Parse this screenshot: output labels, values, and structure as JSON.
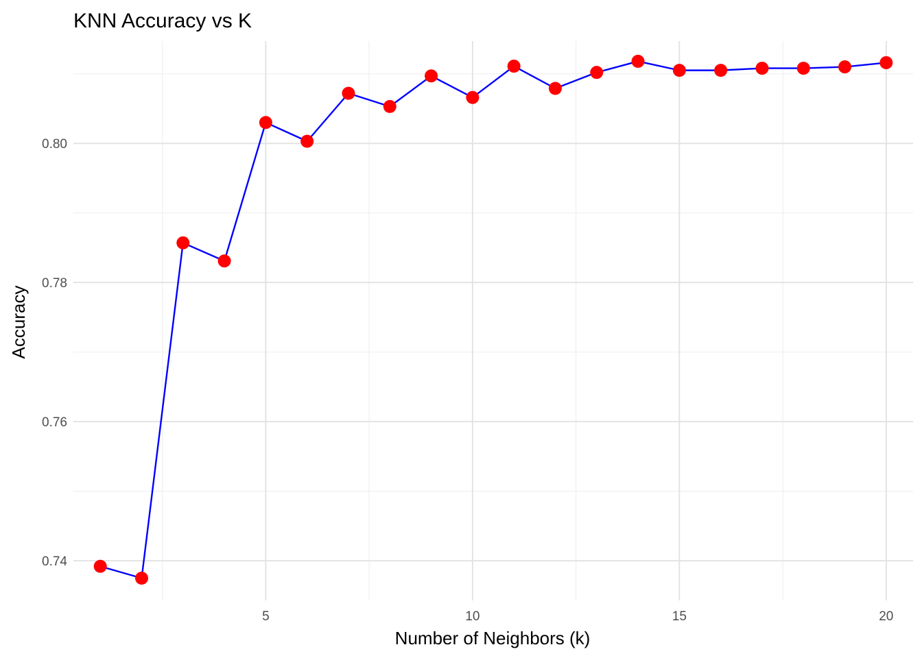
{
  "chart_data": {
    "type": "line",
    "title": "KNN Accuracy vs K",
    "xlabel": "Number of Neighbors (k)",
    "ylabel": "Accuracy",
    "x": [
      1,
      2,
      3,
      4,
      5,
      6,
      7,
      8,
      9,
      10,
      11,
      12,
      13,
      14,
      15,
      16,
      17,
      18,
      19,
      20
    ],
    "series": [
      {
        "values": [
          0.7392,
          0.7375,
          0.7857,
          0.7831,
          0.803,
          0.8003,
          0.8072,
          0.8053,
          0.8097,
          0.8066,
          0.8111,
          0.8079,
          0.8102,
          0.8118,
          0.8105,
          0.8105,
          0.8108,
          0.8108,
          0.811,
          0.8116
        ],
        "line_color": "#0000ff",
        "marker_color": "#ff0000"
      }
    ],
    "xlim": [
      0.35,
      20.65
    ],
    "ylim": [
      0.7343,
      0.8147
    ],
    "x_ticks": [
      5,
      10,
      15,
      20
    ],
    "x_tick_labels": [
      "5",
      "10",
      "15",
      "20"
    ],
    "y_ticks": [
      0.74,
      0.76,
      0.78,
      0.8
    ],
    "y_tick_labels": [
      "0.74",
      "0.76",
      "0.78",
      "0.80"
    ],
    "grid": true,
    "legend": "none"
  }
}
